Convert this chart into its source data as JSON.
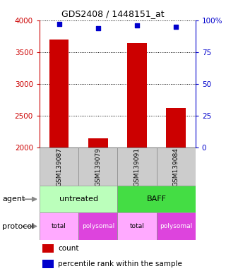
{
  "title": "GDS2408 / 1448151_at",
  "samples": [
    "GSM139087",
    "GSM139079",
    "GSM139091",
    "GSM139084"
  ],
  "counts": [
    3700,
    2150,
    3640,
    2620
  ],
  "percentiles": [
    97,
    94,
    96,
    95
  ],
  "ylim_count": [
    2000,
    4000
  ],
  "yticks_count": [
    2000,
    2500,
    3000,
    3500,
    4000
  ],
  "ylim_pct": [
    0,
    100
  ],
  "yticks_pct": [
    0,
    25,
    50,
    75,
    100
  ],
  "bar_color": "#cc0000",
  "pct_color": "#0000cc",
  "bar_width": 0.5,
  "agent_info": [
    {
      "label": "untreated",
      "start": 0,
      "end": 2,
      "color": "#bbffbb"
    },
    {
      "label": "BAFF",
      "start": 2,
      "end": 4,
      "color": "#44dd44"
    }
  ],
  "protocol_labels": [
    "total",
    "polysomal",
    "total",
    "polysomal"
  ],
  "protocol_colors": [
    "#ffaaff",
    "#dd44dd",
    "#ffaaff",
    "#dd44dd"
  ],
  "protocol_text_colors": [
    "black",
    "white",
    "black",
    "white"
  ],
  "legend_count_color": "#cc0000",
  "legend_pct_color": "#0000cc",
  "bg_color": "#ffffff",
  "tick_color_left": "#cc0000",
  "tick_color_right": "#0000cc"
}
